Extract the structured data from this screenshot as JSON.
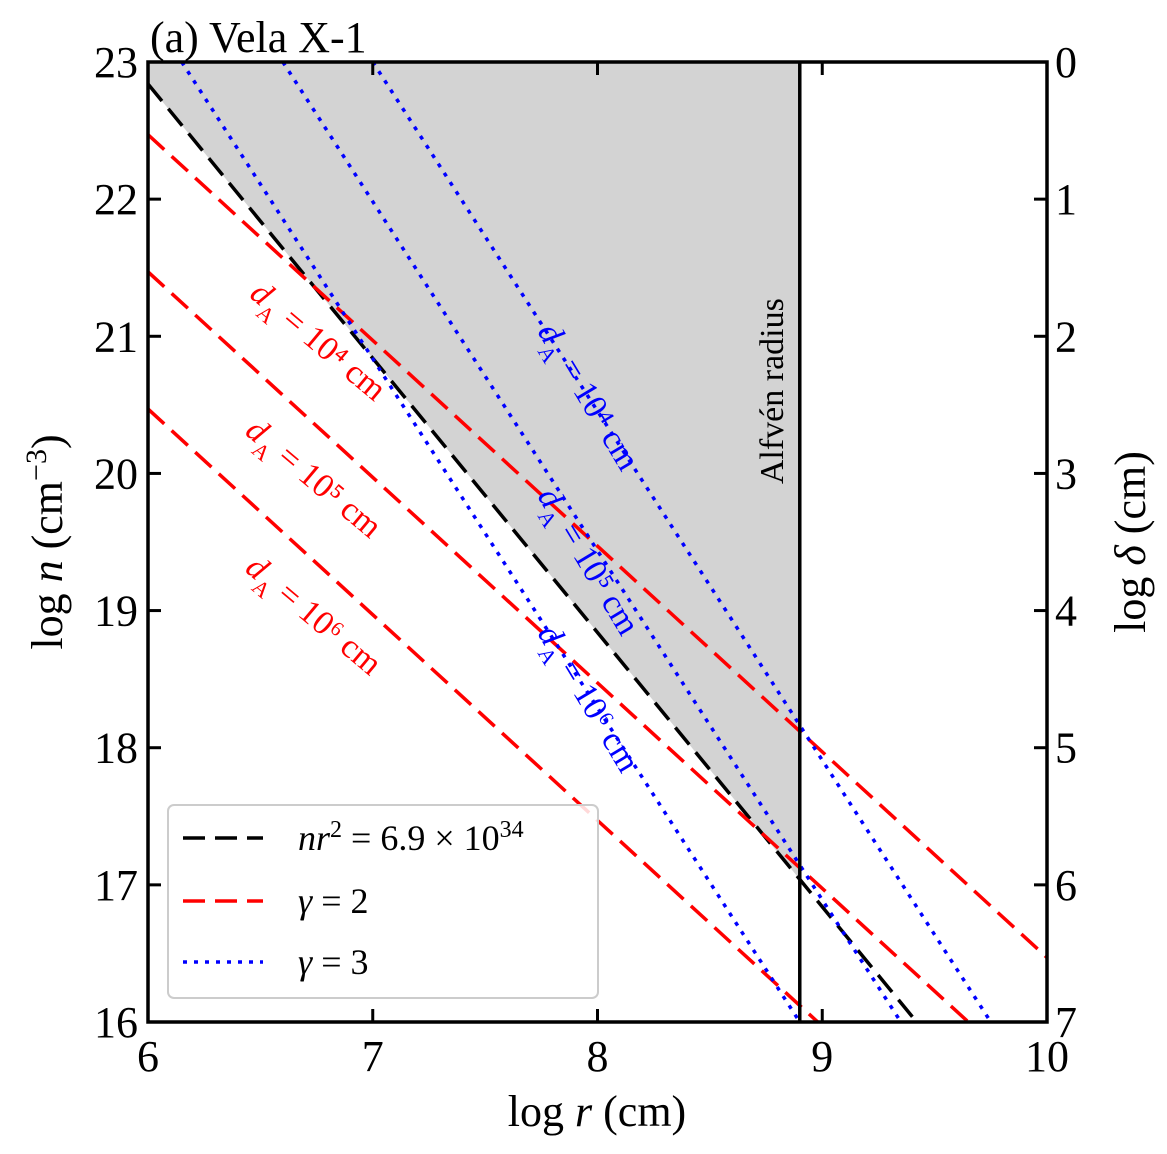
{
  "chart_data": {
    "type": "line",
    "title": "(a) Vela X-1",
    "xlabel": "log r (cm)",
    "ylabel": "log n (cm⁻³)",
    "ylabel_right": "log δ (cm)",
    "xlim": [
      6,
      10
    ],
    "ylim": [
      16,
      23
    ],
    "ylim_right": [
      7,
      0
    ],
    "xticks": [
      "6",
      "7",
      "8",
      "9",
      "10"
    ],
    "yticks": [
      "16",
      "17",
      "18",
      "19",
      "20",
      "21",
      "22",
      "23"
    ],
    "yticks_right": [
      "0",
      "1",
      "2",
      "3",
      "4",
      "5",
      "6",
      "7"
    ],
    "grid": false,
    "legend_position": "lower-left",
    "shaded_region": {
      "bounded_by": "nr² = 6.9 × 10³⁴",
      "x_max": 8.9,
      "color": "#d3d3d3"
    },
    "vertical_line": {
      "x": 8.9,
      "label": "Alfvén radius"
    },
    "series": [
      {
        "name": "nr² = 6.9 × 10³⁴",
        "style": "dashed",
        "color": "#000000",
        "x": [
          6.0,
          9.42
        ],
        "y": [
          22.84,
          16.0
        ]
      },
      {
        "name": "γ = 2",
        "style": "dashed",
        "color": "#ff0000",
        "label": "dA = 10⁴ cm",
        "x": [
          6.0,
          10.0
        ],
        "y": [
          22.47,
          16.47
        ]
      },
      {
        "style": "dashed",
        "color": "#ff0000",
        "label": "dA = 10⁵ cm",
        "x": [
          6.0,
          9.65
        ],
        "y": [
          21.47,
          16.0
        ]
      },
      {
        "style": "dashed",
        "color": "#ff0000",
        "label": "dA = 10⁶ cm",
        "x": [
          6.0,
          8.98
        ],
        "y": [
          20.47,
          16.0
        ]
      },
      {
        "name": "γ = 3",
        "style": "dotted",
        "color": "#0000ff",
        "label": "dA = 10⁴ cm",
        "x": [
          7.0,
          9.75
        ],
        "y": [
          23.0,
          16.0
        ]
      },
      {
        "style": "dotted",
        "color": "#0000ff",
        "label": "dA = 10⁵ cm",
        "x": [
          6.6,
          9.35
        ],
        "y": [
          23.0,
          16.0
        ]
      },
      {
        "style": "dotted",
        "color": "#0000ff",
        "label": "dA = 10⁶ cm",
        "x": [
          6.15,
          8.9
        ],
        "y": [
          23.0,
          16.0
        ]
      }
    ],
    "annotations": [
      {
        "text": "dA = 10⁴ cm",
        "color": "#ff0000",
        "x": 6.75,
        "y": 20.95,
        "angle": 40
      },
      {
        "text": "dA = 10⁵ cm",
        "color": "#ff0000",
        "x": 6.73,
        "y": 19.95,
        "angle": 40
      },
      {
        "text": "dA = 10⁶ cm",
        "color": "#ff0000",
        "x": 6.73,
        "y": 18.95,
        "angle": 40
      },
      {
        "text": "dA = 10⁴ cm",
        "color": "#0000ff",
        "x": 7.95,
        "y": 20.55,
        "angle": 59
      },
      {
        "text": "dA = 10⁵ cm",
        "color": "#0000ff",
        "x": 7.95,
        "y": 19.35,
        "angle": 59
      },
      {
        "text": "dA = 10⁶ cm",
        "color": "#0000ff",
        "x": 7.95,
        "y": 18.35,
        "angle": 59
      },
      {
        "text": "Alfvén radius",
        "color": "#000000",
        "x": 8.79,
        "y": 20.6,
        "angle": -90
      }
    ],
    "legend": [
      {
        "label": "nr² = 6.9 × 10³⁴",
        "style": "dashed",
        "color": "#000000"
      },
      {
        "label": "γ = 2",
        "style": "dashed",
        "color": "#ff0000"
      },
      {
        "label": "γ = 3",
        "style": "dotted",
        "color": "#0000ff"
      }
    ]
  }
}
